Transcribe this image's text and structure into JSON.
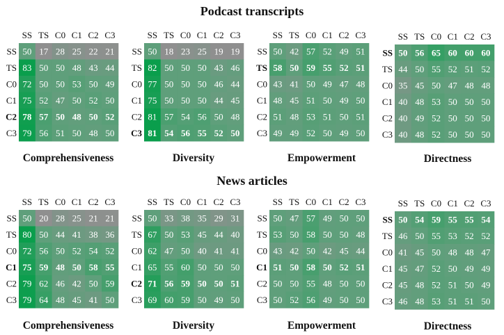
{
  "sections": [
    {
      "title": "Podcast transcripts"
    },
    {
      "title": "News articles"
    }
  ],
  "color_scale": {
    "low": "#8f8f8f",
    "mid": "#5f9f7b",
    "high": "#0a9e4c",
    "text": "#ffffff"
  },
  "chart_data": [
    {
      "type": "heatmap",
      "section": "Podcast transcripts",
      "title": "Comprehensiveness",
      "x_labels": [
        "SS",
        "TS",
        "C0",
        "C1",
        "C2",
        "C3"
      ],
      "y_labels": [
        "SS",
        "TS",
        "C0",
        "C1",
        "C2",
        "C3"
      ],
      "bold_row": "C2",
      "values": [
        [
          50,
          17,
          28,
          25,
          22,
          21
        ],
        [
          83,
          50,
          50,
          48,
          43,
          44
        ],
        [
          72,
          50,
          50,
          53,
          50,
          49
        ],
        [
          75,
          52,
          47,
          50,
          52,
          50
        ],
        [
          78,
          57,
          50,
          48,
          50,
          52
        ],
        [
          79,
          56,
          51,
          50,
          48,
          50
        ]
      ]
    },
    {
      "type": "heatmap",
      "section": "Podcast transcripts",
      "title": "Diversity",
      "x_labels": [
        "SS",
        "TS",
        "C0",
        "C1",
        "C2",
        "C3"
      ],
      "y_labels": [
        "SS",
        "TS",
        "C0",
        "C1",
        "C2",
        "C3"
      ],
      "bold_row": "C3",
      "values": [
        [
          50,
          18,
          23,
          25,
          19,
          19
        ],
        [
          82,
          50,
          50,
          50,
          43,
          46
        ],
        [
          77,
          50,
          50,
          50,
          46,
          44
        ],
        [
          75,
          50,
          50,
          50,
          44,
          45
        ],
        [
          81,
          57,
          54,
          56,
          50,
          48
        ],
        [
          81,
          54,
          56,
          55,
          52,
          50
        ]
      ]
    },
    {
      "type": "heatmap",
      "section": "Podcast transcripts",
      "title": "Empowerment",
      "x_labels": [
        "SS",
        "TS",
        "C0",
        "C1",
        "C2",
        "C3"
      ],
      "y_labels": [
        "SS",
        "TS",
        "C0",
        "C1",
        "C2",
        "C3"
      ],
      "bold_row": "TS",
      "values": [
        [
          50,
          42,
          57,
          52,
          49,
          51
        ],
        [
          58,
          50,
          59,
          55,
          52,
          51
        ],
        [
          43,
          41,
          50,
          49,
          47,
          48
        ],
        [
          48,
          45,
          51,
          50,
          49,
          50
        ],
        [
          51,
          48,
          53,
          51,
          50,
          51
        ],
        [
          49,
          49,
          52,
          50,
          49,
          50
        ]
      ]
    },
    {
      "type": "heatmap",
      "section": "Podcast transcripts",
      "title": "Directness",
      "x_labels": [
        "SS",
        "TS",
        "C0",
        "C1",
        "C2",
        "C3"
      ],
      "y_labels": [
        "SS",
        "TS",
        "C0",
        "C1",
        "C2",
        "C3"
      ],
      "bold_row": "SS",
      "values": [
        [
          50,
          56,
          65,
          60,
          60,
          60
        ],
        [
          44,
          50,
          55,
          52,
          51,
          52
        ],
        [
          35,
          45,
          50,
          47,
          48,
          48
        ],
        [
          40,
          48,
          53,
          50,
          50,
          50
        ],
        [
          40,
          49,
          52,
          50,
          50,
          50
        ],
        [
          40,
          48,
          52,
          50,
          50,
          50
        ]
      ]
    },
    {
      "type": "heatmap",
      "section": "News articles",
      "title": "Comprehensiveness",
      "x_labels": [
        "SS",
        "TS",
        "C0",
        "C1",
        "C2",
        "C3"
      ],
      "y_labels": [
        "SS",
        "TS",
        "C0",
        "C1",
        "C2",
        "C3"
      ],
      "bold_row": "C1",
      "values": [
        [
          50,
          20,
          28,
          25,
          21,
          21
        ],
        [
          80,
          50,
          44,
          41,
          38,
          36
        ],
        [
          72,
          56,
          50,
          52,
          54,
          52
        ],
        [
          75,
          59,
          48,
          50,
          58,
          55
        ],
        [
          79,
          62,
          46,
          42,
          50,
          59
        ],
        [
          79,
          64,
          48,
          45,
          41,
          50
        ]
      ]
    },
    {
      "type": "heatmap",
      "section": "News articles",
      "title": "Diversity",
      "x_labels": [
        "SS",
        "TS",
        "C0",
        "C1",
        "C2",
        "C3"
      ],
      "y_labels": [
        "SS",
        "TS",
        "C0",
        "C1",
        "C2",
        "C3"
      ],
      "bold_row": "C2",
      "values": [
        [
          50,
          33,
          38,
          35,
          29,
          31
        ],
        [
          67,
          50,
          53,
          45,
          44,
          40
        ],
        [
          62,
          47,
          50,
          40,
          41,
          41
        ],
        [
          65,
          55,
          60,
          50,
          50,
          50
        ],
        [
          71,
          56,
          59,
          50,
          50,
          51
        ],
        [
          69,
          60,
          59,
          50,
          49,
          50
        ]
      ]
    },
    {
      "type": "heatmap",
      "section": "News articles",
      "title": "Empowerment",
      "x_labels": [
        "SS",
        "TS",
        "C0",
        "C1",
        "C2",
        "C3"
      ],
      "y_labels": [
        "SS",
        "TS",
        "C0",
        "C1",
        "C2",
        "C3"
      ],
      "bold_row": "C1",
      "values": [
        [
          50,
          47,
          57,
          49,
          50,
          50
        ],
        [
          53,
          50,
          58,
          50,
          50,
          48
        ],
        [
          43,
          42,
          50,
          42,
          45,
          44
        ],
        [
          51,
          50,
          58,
          50,
          52,
          51
        ],
        [
          50,
          50,
          55,
          48,
          50,
          50
        ],
        [
          50,
          52,
          56,
          49,
          50,
          50
        ]
      ]
    },
    {
      "type": "heatmap",
      "section": "News articles",
      "title": "Directness",
      "x_labels": [
        "SS",
        "TS",
        "C0",
        "C1",
        "C2",
        "C3"
      ],
      "y_labels": [
        "SS",
        "TS",
        "C0",
        "C1",
        "C2",
        "C3"
      ],
      "bold_row": "SS",
      "values": [
        [
          50,
          54,
          59,
          55,
          55,
          54
        ],
        [
          46,
          50,
          55,
          53,
          52,
          52
        ],
        [
          41,
          45,
          50,
          48,
          48,
          47
        ],
        [
          45,
          47,
          52,
          50,
          49,
          49
        ],
        [
          45,
          48,
          52,
          51,
          50,
          49
        ],
        [
          46,
          48,
          53,
          51,
          51,
          50
        ]
      ]
    }
  ]
}
